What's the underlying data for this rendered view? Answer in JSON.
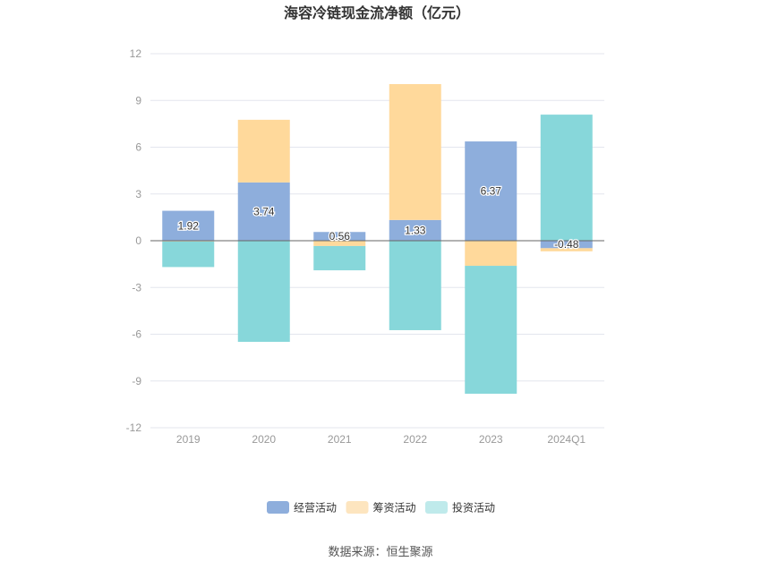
{
  "source": "数据来源：恒生聚源",
  "chart_data": {
    "type": "bar",
    "stacked": true,
    "title": "海容冷链现金流净额（亿元）",
    "xlabel": "",
    "ylabel": "",
    "categories": [
      "2019",
      "2020",
      "2021",
      "2022",
      "2023",
      "2024Q1"
    ],
    "ylim": [
      -12,
      12
    ],
    "yticks": [
      12,
      9,
      6,
      3,
      0,
      -3,
      -6,
      -9,
      -12
    ],
    "grid": true,
    "legend": "bottom-center",
    "series": [
      {
        "name": "经营活动",
        "values": [
          1.92,
          3.74,
          0.56,
          1.33,
          6.37,
          -0.48
        ],
        "labels": [
          "1.92",
          "3.74",
          "0.56",
          "1.33",
          "6.37",
          "-0.48"
        ],
        "color": "#8eaedc",
        "legend_color": "#8eaedc"
      },
      {
        "name": "筹资活动",
        "values": [
          -0.05,
          4.02,
          -0.34,
          8.72,
          -1.61,
          -0.2
        ],
        "color": "#ffd99b",
        "legend_color": "#fde5bf"
      },
      {
        "name": "投资活动",
        "values": [
          -1.64,
          -6.49,
          -1.56,
          -5.74,
          -8.21,
          8.09
        ],
        "color": "#87d7da",
        "legend_color": "#bfeaeb"
      }
    ]
  }
}
